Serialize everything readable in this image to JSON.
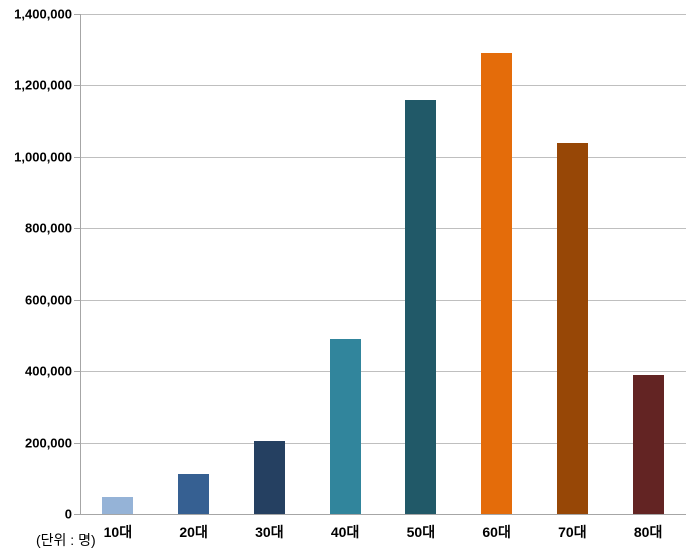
{
  "chart_data": {
    "type": "bar",
    "title": "",
    "categories": [
      "10대",
      "20대",
      "30대",
      "40대",
      "50대",
      "60대",
      "70대",
      "80대"
    ],
    "values": [
      48000,
      112000,
      205000,
      490000,
      1160000,
      1290000,
      1040000,
      390000
    ],
    "bar_colors": [
      "#95B3D7",
      "#366092",
      "#254061",
      "#31859C",
      "#215968",
      "#E46C0A",
      "#974706",
      "#632423"
    ],
    "xlabel": "",
    "ylabel": "",
    "ylim": [
      0,
      1400000
    ],
    "y_tick_interval": 200000,
    "y_tick_labels": [
      "0",
      "200,000",
      "400,000",
      "600,000",
      "800,000",
      "1,000,000",
      "1,200,000",
      "1,400,000"
    ],
    "grid": "horizontal",
    "legend": "none",
    "footnote": "(단위 : 명)"
  },
  "colors": {
    "gridline": "#BFBFBF",
    "axis": "#A6A6A6",
    "text": "#000000",
    "background": "#FFFFFF"
  }
}
